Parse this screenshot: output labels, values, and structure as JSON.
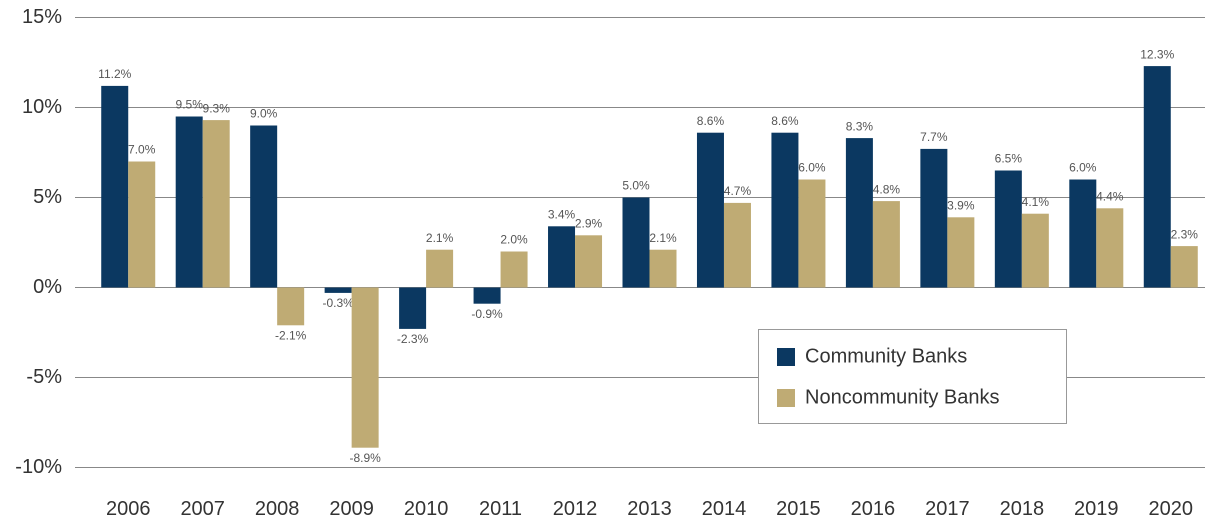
{
  "chart_data": {
    "type": "bar",
    "categories": [
      "2006",
      "2007",
      "2008",
      "2009",
      "2010",
      "2011",
      "2012",
      "2013",
      "2014",
      "2015",
      "2016",
      "2017",
      "2018",
      "2019",
      "2020"
    ],
    "series": [
      {
        "name": "Community Banks",
        "color": "#0b3861",
        "values": [
          11.2,
          9.5,
          9.0,
          -0.3,
          -2.3,
          -0.9,
          3.4,
          5.0,
          8.6,
          8.6,
          8.3,
          7.7,
          6.5,
          6.0,
          12.3
        ],
        "value_labels": [
          "11.2%",
          "9.5%",
          "9.0%",
          "-0.3%",
          "-2.3%",
          "-0.9%",
          "3.4%",
          "5.0%",
          "8.6%",
          "8.6%",
          "8.3%",
          "7.7%",
          "6.5%",
          "6.0%",
          "12.3%"
        ]
      },
      {
        "name": "Noncommunity Banks",
        "color": "#bfab74",
        "values": [
          7.0,
          9.3,
          -2.1,
          -8.9,
          2.1,
          2.0,
          2.9,
          2.1,
          4.7,
          6.0,
          4.8,
          3.9,
          4.1,
          4.4,
          2.3
        ],
        "value_labels": [
          "7.0%",
          "9.3%",
          "-2.1%",
          "-8.9%",
          "2.1%",
          "2.0%",
          "2.9%",
          "2.1%",
          "4.7%",
          "6.0%",
          "4.8%",
          "3.9%",
          "4.1%",
          "4.4%",
          "2.3%"
        ]
      }
    ],
    "ylim": [
      -10,
      15
    ],
    "yticks": [
      {
        "value": -10,
        "label": "-10%"
      },
      {
        "value": -5,
        "label": "-5%"
      },
      {
        "value": 0,
        "label": "0%"
      },
      {
        "value": 5,
        "label": "5%"
      },
      {
        "value": 10,
        "label": "10%"
      },
      {
        "value": 15,
        "label": "15%"
      }
    ],
    "grid": true,
    "legend": "lower-right"
  }
}
